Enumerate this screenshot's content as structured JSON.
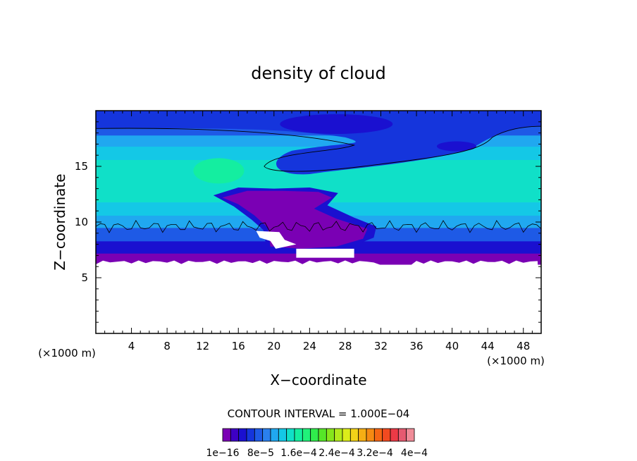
{
  "chart_data": {
    "type": "heatmap",
    "title": "density of cloud",
    "xlabel": "X−coordinate",
    "ylabel": "Z−coordinate",
    "x_unit_left": "(×1000 m)",
    "x_unit_right": "(×1000 m)",
    "xlim": [
      0,
      50
    ],
    "ylim": [
      0,
      20
    ],
    "x_ticks": [
      4,
      8,
      12,
      16,
      20,
      24,
      28,
      32,
      36,
      40,
      44,
      48
    ],
    "x_tick_labels": [
      "4",
      "8",
      "12",
      "16",
      "20",
      "24",
      "28",
      "32",
      "36",
      "40",
      "44",
      "48"
    ],
    "y_ticks": [
      5,
      10,
      15
    ],
    "y_tick_labels": [
      "5",
      "10",
      "15"
    ],
    "contour_interval_text": "CONTOUR INTERVAL = 1.000E−04",
    "colorbar": {
      "labels": [
        "1e−16",
        "8e−5",
        "1.6e−4",
        "2.4e−4",
        "3.2e−4",
        "4e−4"
      ],
      "colors": [
        "#7a00b4",
        "#3d00c4",
        "#1a10d0",
        "#1535dc",
        "#1e5ae6",
        "#2a80ee",
        "#20a8f0",
        "#14c8e6",
        "#10e0c8",
        "#14eea0",
        "#20f27a",
        "#30ec4c",
        "#56e628",
        "#86e61c",
        "#b2ea1c",
        "#dced1a",
        "#f2d218",
        "#f5ae14",
        "#f58a12",
        "#f56614",
        "#f24a20",
        "#ec3a46",
        "#e65a70",
        "#f08c98"
      ]
    },
    "bands": [
      {
        "name": "white-empty",
        "z_from": 0,
        "z_to": 6.2,
        "color": "#ffffff"
      },
      {
        "name": "purple-lowest",
        "z_from": 6.2,
        "z_to": 7.2,
        "color": "#7a00b4"
      },
      {
        "name": "deep-blue",
        "z_from": 7.2,
        "z_to": 8.3,
        "color": "#1a10d0"
      },
      {
        "name": "blue",
        "z_from": 8.3,
        "z_to": 9.5,
        "color": "#1e5ae6"
      },
      {
        "name": "azure",
        "z_from": 9.5,
        "z_to": 10.6,
        "color": "#20a8f0"
      },
      {
        "name": "cyan",
        "z_from": 10.6,
        "z_to": 11.8,
        "color": "#14c8e6"
      },
      {
        "name": "aqua-green",
        "z_from": 11.8,
        "z_to": 15.6,
        "color": "#10e0c8"
      },
      {
        "name": "cyan-upper",
        "z_from": 15.6,
        "z_to": 16.8,
        "color": "#14c8e6"
      },
      {
        "name": "azure-upper",
        "z_from": 16.8,
        "z_to": 17.8,
        "color": "#20a8f0"
      },
      {
        "name": "blue-upper",
        "z_from": 17.8,
        "z_to": 18.6,
        "color": "#1e5ae6"
      },
      {
        "name": "deep-blue-top",
        "z_from": 18.6,
        "z_to": 20,
        "color": "#1535dc"
      }
    ]
  }
}
